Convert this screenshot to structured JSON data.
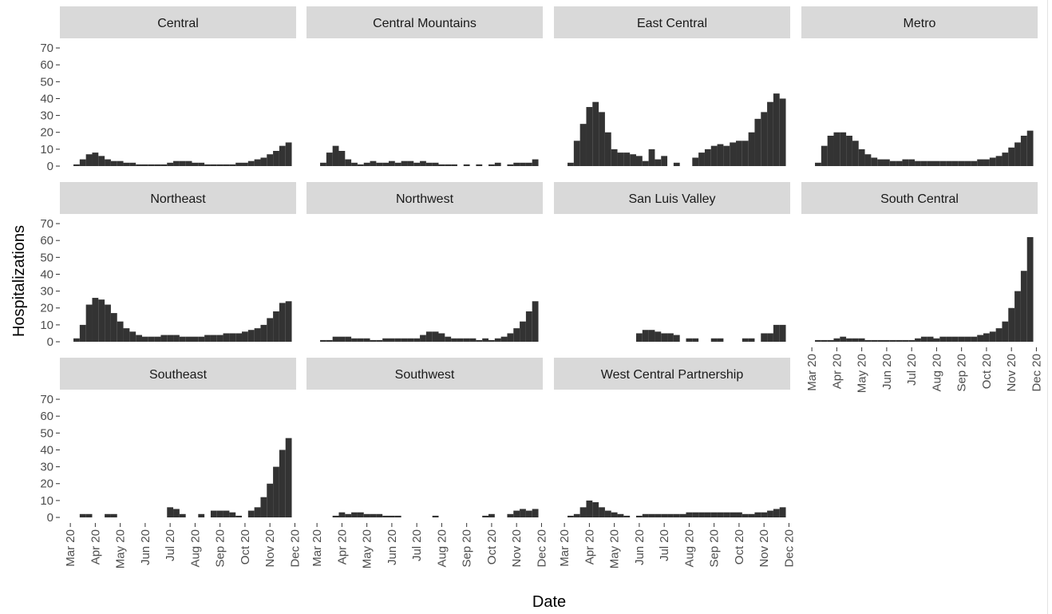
{
  "chart_data": {
    "type": "bar",
    "x_label": "Date",
    "y_label": "Hospitalizations",
    "color": "#333333",
    "x": [
      0.25,
      0.5,
      0.75,
      1,
      1.25,
      1.5,
      1.75,
      2,
      2.25,
      2.5,
      2.75,
      3,
      3.25,
      3.5,
      3.75,
      4,
      4.25,
      4.5,
      4.75,
      5,
      5.25,
      5.5,
      5.75,
      6,
      6.25,
      6.5,
      6.75,
      7,
      7.25,
      7.5,
      7.75,
      8,
      8.25,
      8.5,
      8.75
    ],
    "xlim": [
      -0.42,
      9.05
    ],
    "xticks": [
      {
        "value": 0,
        "label": "Mar 20"
      },
      {
        "value": 1,
        "label": "Apr 20"
      },
      {
        "value": 2,
        "label": "May 20"
      },
      {
        "value": 3,
        "label": "Jun 20"
      },
      {
        "value": 4,
        "label": "Jul 20"
      },
      {
        "value": 5,
        "label": "Aug 20"
      },
      {
        "value": 6,
        "label": "Sep 20"
      },
      {
        "value": 7,
        "label": "Oct 20"
      },
      {
        "value": 8,
        "label": "Nov 20"
      },
      {
        "value": 9,
        "label": "Dec 20"
      }
    ],
    "ylim": [
      -3.3,
      75.7
    ],
    "yticks": [
      0,
      10,
      20,
      30,
      40,
      50,
      60,
      70
    ],
    "facets": [
      {
        "title": "Central",
        "values": [
          1,
          4,
          7,
          8,
          6,
          4,
          3,
          3,
          2,
          2,
          1,
          1,
          1,
          1,
          1,
          2,
          3,
          3,
          3,
          2,
          2,
          1,
          1,
          1,
          1,
          1,
          2,
          2,
          3,
          4,
          5,
          7,
          9,
          12,
          14
        ]
      },
      {
        "title": "Central Mountains",
        "values": [
          2,
          8,
          12,
          9,
          4,
          2,
          1,
          2,
          3,
          2,
          2,
          3,
          2,
          3,
          3,
          2,
          3,
          2,
          2,
          1,
          1,
          1,
          null,
          1,
          null,
          1,
          null,
          1,
          2,
          null,
          1,
          2,
          2,
          2,
          4
        ]
      },
      {
        "title": "East Central",
        "values": [
          2,
          15,
          25,
          35,
          38,
          32,
          20,
          10,
          8,
          8,
          7,
          6,
          3,
          10,
          4,
          6,
          null,
          2,
          null,
          null,
          5,
          8,
          10,
          12,
          13,
          12,
          14,
          15,
          15,
          20,
          28,
          32,
          38,
          43,
          40
        ]
      },
      {
        "title": "Metro",
        "values": [
          2,
          12,
          18,
          20,
          20,
          18,
          15,
          10,
          7,
          5,
          4,
          4,
          3,
          3,
          4,
          4,
          3,
          3,
          3,
          3,
          3,
          3,
          3,
          3,
          3,
          3,
          4,
          4,
          5,
          6,
          8,
          11,
          14,
          18,
          21
        ]
      },
      {
        "title": "Northeast",
        "values": [
          2,
          10,
          22,
          26,
          25,
          22,
          17,
          12,
          8,
          6,
          4,
          3,
          3,
          3,
          4,
          4,
          4,
          3,
          3,
          3,
          3,
          4,
          4,
          4,
          5,
          5,
          5,
          6,
          7,
          8,
          10,
          14,
          18,
          23,
          24
        ]
      },
      {
        "title": "Northwest",
        "values": [
          1,
          1,
          3,
          3,
          3,
          2,
          2,
          2,
          1,
          1,
          2,
          2,
          2,
          2,
          2,
          2,
          4,
          6,
          6,
          5,
          3,
          2,
          2,
          2,
          2,
          1,
          2,
          1,
          2,
          3,
          5,
          8,
          12,
          18,
          24
        ]
      },
      {
        "title": "San Luis Valley",
        "values": [
          null,
          null,
          null,
          null,
          null,
          null,
          null,
          null,
          null,
          null,
          null,
          5,
          7,
          7,
          6,
          5,
          5,
          4,
          null,
          2,
          2,
          null,
          null,
          2,
          2,
          null,
          null,
          null,
          2,
          2,
          null,
          5,
          5,
          10,
          10
        ]
      },
      {
        "title": "South Central",
        "values": [
          1,
          1,
          1,
          2,
          3,
          2,
          2,
          2,
          1,
          1,
          1,
          1,
          1,
          1,
          1,
          1,
          2,
          3,
          3,
          2,
          3,
          3,
          3,
          3,
          3,
          3,
          4,
          5,
          6,
          8,
          12,
          20,
          30,
          42,
          62
        ]
      },
      {
        "title": "Southeast",
        "values": [
          null,
          2,
          2,
          null,
          null,
          2,
          2,
          null,
          null,
          null,
          null,
          null,
          null,
          null,
          null,
          6,
          5,
          2,
          null,
          null,
          2,
          null,
          4,
          4,
          4,
          3,
          1,
          null,
          4,
          6,
          12,
          20,
          30,
          40,
          47
        ]
      },
      {
        "title": "Southwest",
        "values": [
          null,
          null,
          1,
          3,
          2,
          3,
          3,
          2,
          2,
          2,
          1,
          1,
          1,
          null,
          null,
          null,
          null,
          null,
          1,
          null,
          null,
          null,
          null,
          null,
          null,
          null,
          1,
          2,
          null,
          null,
          2,
          4,
          5,
          4,
          5
        ]
      },
      {
        "title": "West Central Partnership",
        "values": [
          1,
          2,
          6,
          10,
          9,
          6,
          4,
          3,
          2,
          1,
          null,
          1,
          2,
          2,
          2,
          2,
          2,
          2,
          2,
          3,
          3,
          3,
          3,
          3,
          3,
          3,
          3,
          3,
          2,
          2,
          3,
          3,
          4,
          5,
          6
        ]
      }
    ]
  }
}
